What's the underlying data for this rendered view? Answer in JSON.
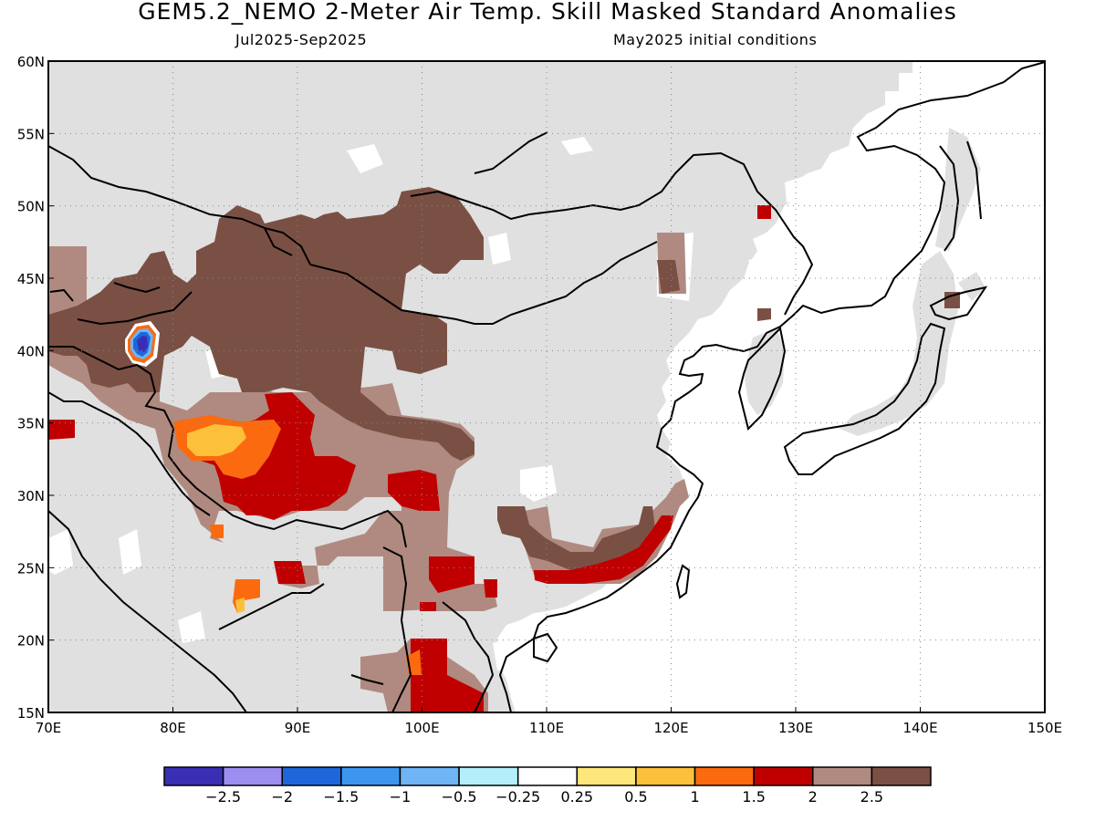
{
  "header": {
    "title": "GEM5.2_NEMO 2-Meter Air Temp. Skill Masked Standard Anomalies",
    "period": "Jul2025-Sep2025",
    "init": "May2025 initial conditions"
  },
  "map": {
    "lon_range": [
      70,
      150
    ],
    "lat_range": [
      15,
      60
    ],
    "lon_ticks": [
      "70E",
      "80E",
      "90E",
      "100E",
      "110E",
      "120E",
      "130E",
      "140E",
      "150E"
    ],
    "lat_ticks": [
      "15N",
      "20N",
      "25N",
      "30N",
      "35N",
      "40N",
      "45N",
      "50N",
      "55N",
      "60N"
    ],
    "grid": true,
    "masked_color": "#e0e0e0"
  },
  "colorbar": {
    "colors": [
      "#3a2fb4",
      "#9b8ef0",
      "#1f66dc",
      "#3c96ef",
      "#6fb4f4",
      "#b4eefb",
      "#ffffff",
      "#fde67a",
      "#fcc03a",
      "#fb6a0e",
      "#c00000",
      "#b08a80",
      "#7a5044"
    ],
    "labels": [
      "-2.5",
      "-2",
      "-1.5",
      "-1",
      "-0.5",
      "-0.25",
      "0.25",
      "0.5",
      "1",
      "1.5",
      "2",
      "2.5"
    ]
  }
}
